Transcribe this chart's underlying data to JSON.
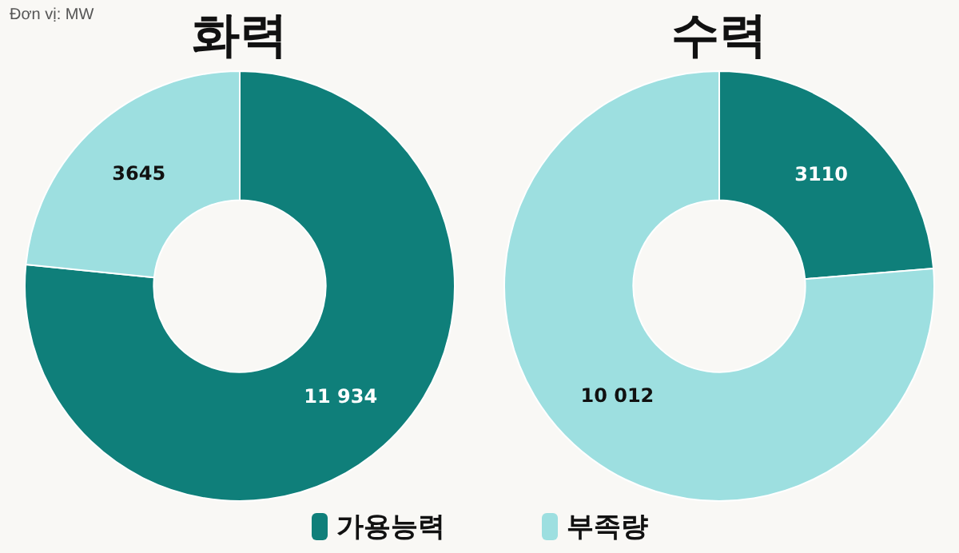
{
  "chart_data": [
    {
      "type": "donut",
      "title": "화력",
      "annotations": [
        "Đơn vị: MW"
      ],
      "categories": [
        "가용능력",
        "부족량"
      ],
      "values": [
        11934,
        3645
      ],
      "value_labels": [
        "11 934",
        "3645"
      ],
      "colors": [
        "#0f7f7a",
        "#9ddfe0"
      ],
      "legend": "bottom"
    },
    {
      "type": "donut",
      "title": "수력",
      "categories": [
        null,
        null
      ],
      "values": [
        3110,
        10012
      ],
      "value_labels": [
        "3110",
        "10 012"
      ],
      "colors": [
        "#0f7f7a",
        "#9ddfe0"
      ]
    }
  ]
}
